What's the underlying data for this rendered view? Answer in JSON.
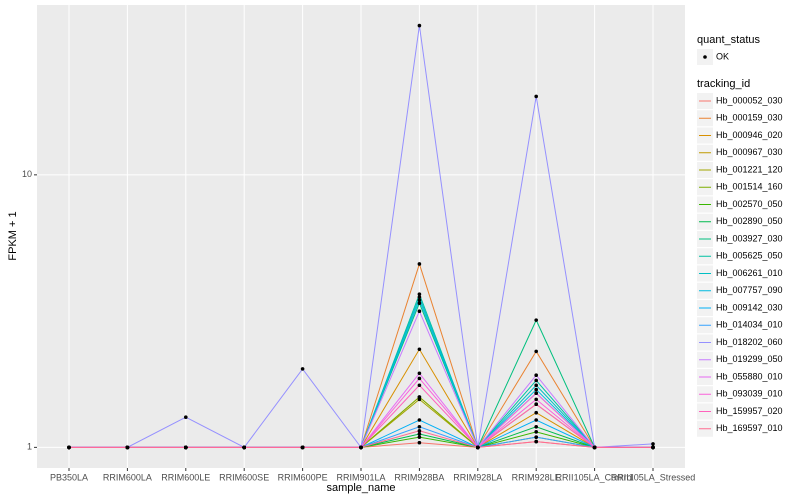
{
  "chart_data": {
    "type": "line",
    "x_label": "sample_name",
    "y_label": "FPKM + 1",
    "y_log": true,
    "grid": true,
    "ylim": [
      0.84,
      42
    ],
    "yticks": [
      1,
      10
    ],
    "legend_position": "right",
    "point_legend_title": "quant_status",
    "point_legend_entry": "OK",
    "point_color": "#000000",
    "legend_title": "tracking_id",
    "categories": [
      "PB350LA",
      "RRIM600LA",
      "RRIM600LE",
      "RRIM600SE",
      "RRIM600PE",
      "RRIM901LA",
      "RRIM928BA",
      "RRIM928LA",
      "RRIM928LE",
      "RRII105LA_Control",
      "RRII105LA_Stressed"
    ],
    "series": [
      {
        "name": "Hb_000052_030",
        "color": "#F8766D",
        "values": [
          1,
          1,
          1,
          1,
          1,
          1,
          1.04,
          1,
          1.05,
          1,
          1
        ]
      },
      {
        "name": "Hb_000159_030",
        "color": "#EA8331",
        "values": [
          1,
          1,
          1,
          1,
          1,
          1,
          4.71,
          1,
          2.25,
          1,
          1
        ]
      },
      {
        "name": "Hb_000946_020",
        "color": "#D89000",
        "values": [
          1,
          1,
          1,
          1,
          1,
          1,
          2.29,
          1,
          1.34,
          1,
          1
        ]
      },
      {
        "name": "Hb_000967_030",
        "color": "#C09B00",
        "values": [
          1,
          1,
          1,
          1,
          1,
          1,
          1.53,
          1,
          1.44,
          1,
          1
        ]
      },
      {
        "name": "Hb_001221_120",
        "color": "#A3A500",
        "values": [
          1,
          1,
          1,
          1,
          1,
          1,
          1.5,
          1,
          1.58,
          1,
          1
        ]
      },
      {
        "name": "Hb_001514_160",
        "color": "#7CAE00",
        "values": [
          1,
          1,
          1,
          1,
          1,
          1,
          1.53,
          1,
          1.09,
          1,
          1
        ]
      },
      {
        "name": "Hb_002570_050",
        "color": "#39B600",
        "values": [
          1,
          1,
          1,
          1,
          1,
          1,
          1.09,
          1,
          1.14,
          1,
          1
        ]
      },
      {
        "name": "Hb_002890_050",
        "color": "#00BB4E",
        "values": [
          1,
          1,
          1,
          1,
          1,
          1,
          1.12,
          1,
          1.19,
          1,
          1
        ]
      },
      {
        "name": "Hb_003927_030",
        "color": "#00BF7D",
        "values": [
          1,
          1,
          1,
          1,
          1,
          1,
          3.38,
          1,
          2.93,
          1,
          1
        ]
      },
      {
        "name": "Hb_005625_050",
        "color": "#00C1A3",
        "values": [
          1,
          1,
          1,
          1,
          1,
          1,
          3.65,
          1,
          1.76,
          1,
          1
        ]
      },
      {
        "name": "Hb_006261_010",
        "color": "#00BFC4",
        "values": [
          1,
          1,
          1,
          1,
          1,
          1,
          3.56,
          1,
          1.69,
          1,
          1
        ]
      },
      {
        "name": "Hb_007757_090",
        "color": "#00BAE0",
        "values": [
          1,
          1,
          1,
          1,
          1,
          1,
          3.47,
          1,
          1.63,
          1,
          1
        ]
      },
      {
        "name": "Hb_009142_030",
        "color": "#00B0F6",
        "values": [
          1,
          1,
          1,
          1,
          1,
          1,
          1.26,
          1,
          1.26,
          1,
          1
        ]
      },
      {
        "name": "Hb_014034_010",
        "color": "#35A2FF",
        "values": [
          1,
          1,
          1,
          1,
          1,
          1,
          1.19,
          1,
          1.09,
          1,
          1
        ]
      },
      {
        "name": "Hb_018202_060",
        "color": "#9590FF",
        "values": [
          1,
          1,
          1.29,
          1,
          1.94,
          1,
          35.3,
          1,
          19.4,
          1,
          1.03
        ]
      },
      {
        "name": "Hb_019299_050",
        "color": "#C77CFF",
        "values": [
          1,
          1,
          1,
          1,
          1,
          1,
          3.16,
          1,
          1.84,
          1,
          1
        ]
      },
      {
        "name": "Hb_055880_010",
        "color": "#E76BF3",
        "values": [
          1,
          1,
          1,
          1,
          1,
          1,
          1.87,
          1,
          1.58,
          1,
          1
        ]
      },
      {
        "name": "Hb_093039_010",
        "color": "#FA62DB",
        "values": [
          1,
          1,
          1,
          1,
          1,
          1,
          1.79,
          1,
          1.5,
          1,
          1
        ]
      },
      {
        "name": "Hb_159957_020",
        "color": "#FF62BC",
        "values": [
          1,
          1,
          1,
          1,
          1,
          1,
          1.69,
          1,
          1.44,
          1,
          1
        ]
      },
      {
        "name": "Hb_169597_010",
        "color": "#FF6C91",
        "values": [
          1,
          1,
          1,
          1,
          1,
          1,
          1.15,
          1,
          1.05,
          1,
          1
        ]
      }
    ]
  }
}
